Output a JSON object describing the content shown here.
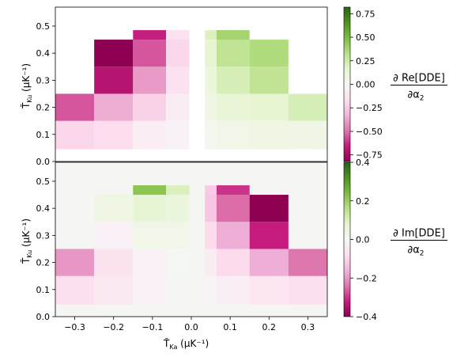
{
  "chart_data": [
    {
      "type": "heatmap",
      "panel": "top",
      "x_centers": [
        -0.25,
        -0.15,
        -0.05,
        0.05,
        0.15,
        0.25
      ],
      "y_centers": [
        0.1,
        0.2,
        0.3,
        0.4,
        0.5
      ],
      "xlim": [
        -0.35,
        0.35
      ],
      "ylim": [
        0.0,
        0.57
      ],
      "background": "#ffffff",
      "ylabel_main": "T̃",
      "ylabel_sub": "Ku",
      "ylabel_unit": " (µK⁻¹)",
      "ytick_labels": [
        "0.0",
        "0.1",
        "0.2",
        "0.3",
        "0.4",
        "0.5"
      ],
      "cells": [
        {
          "x": -0.3,
          "y": 0.1,
          "value": -0.2
        },
        {
          "x": -0.2,
          "y": 0.1,
          "value": -0.18
        },
        {
          "x": -0.1,
          "y": 0.1,
          "value": -0.07
        },
        {
          "x": -0.03,
          "y": 0.1,
          "value": -0.04
        },
        {
          "x": 0.03,
          "y": 0.1,
          "value": 0.03
        },
        {
          "x": 0.1,
          "y": 0.1,
          "value": 0.06
        },
        {
          "x": 0.2,
          "y": 0.1,
          "value": 0.08
        },
        {
          "x": 0.3,
          "y": 0.1,
          "value": 0.07
        },
        {
          "x": -0.3,
          "y": 0.2,
          "value": -0.55
        },
        {
          "x": -0.2,
          "y": 0.2,
          "value": -0.35
        },
        {
          "x": -0.1,
          "y": 0.2,
          "value": -0.22
        },
        {
          "x": -0.03,
          "y": 0.2,
          "value": -0.08
        },
        {
          "x": 0.03,
          "y": 0.2,
          "value": 0.08
        },
        {
          "x": 0.1,
          "y": 0.2,
          "value": 0.13
        },
        {
          "x": 0.2,
          "y": 0.2,
          "value": 0.15
        },
        {
          "x": 0.3,
          "y": 0.2,
          "value": 0.22
        },
        {
          "x": -0.2,
          "y": 0.3,
          "value": -0.7
        },
        {
          "x": -0.1,
          "y": 0.3,
          "value": -0.4
        },
        {
          "x": -0.03,
          "y": 0.3,
          "value": -0.15
        },
        {
          "x": 0.03,
          "y": 0.3,
          "value": 0.12
        },
        {
          "x": 0.1,
          "y": 0.3,
          "value": 0.22
        },
        {
          "x": 0.2,
          "y": 0.3,
          "value": 0.3
        },
        {
          "x": -0.2,
          "y": 0.4,
          "value": -0.82
        },
        {
          "x": -0.1,
          "y": 0.4,
          "value": -0.55
        },
        {
          "x": -0.03,
          "y": 0.4,
          "value": -0.2
        },
        {
          "x": 0.03,
          "y": 0.4,
          "value": 0.15
        },
        {
          "x": 0.1,
          "y": 0.4,
          "value": 0.3
        },
        {
          "x": 0.2,
          "y": 0.4,
          "value": 0.35
        },
        {
          "x": -0.1,
          "y": 0.5,
          "value": -0.65
        },
        {
          "x": -0.03,
          "y": 0.5,
          "value": -0.15
        },
        {
          "x": 0.03,
          "y": 0.5,
          "value": 0.2
        },
        {
          "x": 0.1,
          "y": 0.5,
          "value": 0.38
        }
      ],
      "colorbar": {
        "colormap": "PiYG",
        "vmin": -0.82,
        "vmax": 0.82,
        "ticks": [
          -0.75,
          -0.5,
          -0.25,
          0.0,
          0.25,
          0.5,
          0.75
        ],
        "tick_labels": [
          "−0.75",
          "−0.50",
          "−0.25",
          "0.00",
          "0.25",
          "0.50",
          "0.75"
        ],
        "label_num": "∂ Re[DDE]",
        "label_den": "∂α",
        "label_den_sub": "2"
      }
    },
    {
      "type": "heatmap",
      "panel": "bottom",
      "x_centers": [
        -0.25,
        -0.15,
        -0.05,
        0.05,
        0.15,
        0.25
      ],
      "y_centers": [
        0.1,
        0.2,
        0.3,
        0.4,
        0.5
      ],
      "xlim": [
        -0.35,
        0.35
      ],
      "ylim": [
        0.0,
        0.57
      ],
      "background": "#f5f5f3",
      "xlabel_main": "T̃",
      "xlabel_sub": "Ka",
      "xlabel_unit": " (µK⁻¹)",
      "ylabel_main": "T̃",
      "ylabel_sub": "Ku",
      "ylabel_unit": " (µK⁻¹)",
      "xtick_labels": [
        "−0.3",
        "−0.2",
        "−0.1",
        "0.0",
        "0.1",
        "0.2",
        "0.3"
      ],
      "ytick_labels": [
        "0.0",
        "0.1",
        "0.2",
        "0.3",
        "0.4",
        "0.5"
      ],
      "cells": [
        {
          "x": -0.3,
          "y": 0.1,
          "value": -0.08
        },
        {
          "x": -0.2,
          "y": 0.1,
          "value": -0.05
        },
        {
          "x": -0.1,
          "y": 0.1,
          "value": -0.02
        },
        {
          "x": 0.03,
          "y": 0.1,
          "value": -0.01
        },
        {
          "x": 0.1,
          "y": 0.1,
          "value": -0.03
        },
        {
          "x": 0.2,
          "y": 0.1,
          "value": -0.06
        },
        {
          "x": 0.3,
          "y": 0.1,
          "value": -0.08
        },
        {
          "x": -0.3,
          "y": 0.2,
          "value": -0.2
        },
        {
          "x": -0.2,
          "y": 0.2,
          "value": -0.07
        },
        {
          "x": -0.1,
          "y": 0.2,
          "value": -0.02
        },
        {
          "x": -0.03,
          "y": 0.2,
          "value": 0.01
        },
        {
          "x": 0.03,
          "y": 0.2,
          "value": -0.04
        },
        {
          "x": 0.1,
          "y": 0.2,
          "value": -0.09
        },
        {
          "x": 0.2,
          "y": 0.2,
          "value": -0.17
        },
        {
          "x": 0.3,
          "y": 0.2,
          "value": -0.24
        },
        {
          "x": -0.2,
          "y": 0.3,
          "value": -0.02
        },
        {
          "x": -0.1,
          "y": 0.3,
          "value": 0.03
        },
        {
          "x": -0.03,
          "y": 0.3,
          "value": 0.03
        },
        {
          "x": 0.03,
          "y": 0.3,
          "value": -0.09
        },
        {
          "x": 0.1,
          "y": 0.3,
          "value": -0.17
        },
        {
          "x": 0.2,
          "y": 0.3,
          "value": -0.32
        },
        {
          "x": -0.2,
          "y": 0.4,
          "value": 0.04
        },
        {
          "x": -0.1,
          "y": 0.4,
          "value": 0.07
        },
        {
          "x": -0.03,
          "y": 0.4,
          "value": 0.05
        },
        {
          "x": 0.03,
          "y": 0.4,
          "value": -0.13
        },
        {
          "x": 0.1,
          "y": 0.4,
          "value": -0.25
        },
        {
          "x": 0.2,
          "y": 0.4,
          "value": -0.4
        },
        {
          "x": -0.1,
          "y": 0.5,
          "value": 0.22
        },
        {
          "x": -0.03,
          "y": 0.5,
          "value": 0.1
        },
        {
          "x": 0.03,
          "y": 0.5,
          "value": -0.12
        },
        {
          "x": 0.1,
          "y": 0.5,
          "value": -0.3
        }
      ],
      "colorbar": {
        "colormap": "PiYG",
        "vmin": -0.4,
        "vmax": 0.4,
        "ticks": [
          -0.4,
          -0.2,
          0.0,
          0.2,
          0.4
        ],
        "tick_labels": [
          "−0.4",
          "−0.2",
          "0.0",
          "0.2",
          "0.4"
        ],
        "label_num": "∂ Im[DDE]",
        "label_den": "∂α",
        "label_den_sub": "2"
      }
    }
  ]
}
